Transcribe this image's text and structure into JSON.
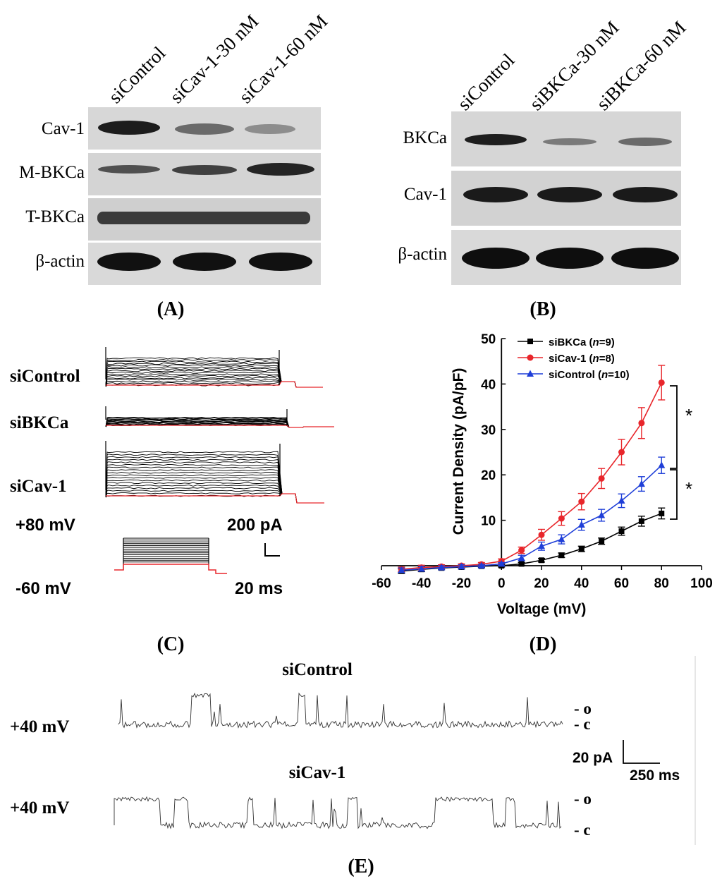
{
  "panels": {
    "A": {
      "label": "(A)",
      "lanes": [
        "siControl",
        "siCav-1-30 nM",
        "siCav-1-60 nM"
      ],
      "rows": [
        "Cav-1",
        "M-BKCa",
        "T-BKCa",
        "β-actin"
      ]
    },
    "B": {
      "label": "(B)",
      "lanes": [
        "siControl",
        "siBKCa-30 nM",
        "siBKCa-60 nM"
      ],
      "rows": [
        "BKCa",
        "Cav-1",
        "β-actin"
      ]
    },
    "C": {
      "label": "(C)",
      "traces": [
        "siControl",
        "siBKCa",
        "siCav-1"
      ],
      "v_top": "+80 mV",
      "v_bottom": "-60 mV",
      "scale_current": "200 pA",
      "scale_time": "20 ms"
    },
    "D": {
      "label": "(D)"
    },
    "E": {
      "label": "(E)",
      "traces": [
        {
          "title": "siControl",
          "voltage": "+40 mV"
        },
        {
          "title": "siCav-1",
          "voltage": "+40 mV"
        }
      ],
      "open_label": "- o",
      "closed_label": "- c",
      "scale_current": "20 pA",
      "scale_time": "250 ms"
    }
  },
  "chart_data": {
    "type": "line",
    "xlabel": "Voltage (mV)",
    "ylabel": "Current Density (pA/pF)",
    "xlim": [
      -60,
      100
    ],
    "ylim": [
      0,
      50
    ],
    "xticks": [
      -60,
      -40,
      -20,
      0,
      20,
      40,
      60,
      80,
      100
    ],
    "yticks": [
      0,
      10,
      20,
      30,
      40,
      50
    ],
    "x": [
      -50,
      -40,
      -30,
      -20,
      -10,
      0,
      10,
      20,
      30,
      40,
      50,
      60,
      70,
      80
    ],
    "series": [
      {
        "name": "siBKCa",
        "n": "9",
        "color": "#000000",
        "marker": "square",
        "values": [
          -1.2,
          -0.8,
          -0.5,
          -0.3,
          -0.1,
          0.0,
          0.4,
          1.2,
          2.3,
          3.7,
          5.4,
          7.6,
          9.8,
          11.5
        ],
        "errors": [
          0.5,
          0.5,
          0.4,
          0.4,
          0.3,
          0.3,
          0.3,
          0.4,
          0.5,
          0.6,
          0.7,
          0.9,
          1.1,
          1.2
        ]
      },
      {
        "name": "siCav-1",
        "n": "8",
        "color": "#e8262b",
        "marker": "circle",
        "values": [
          -0.8,
          -0.4,
          -0.2,
          0.0,
          0.3,
          1.0,
          3.4,
          6.8,
          10.4,
          14.1,
          19.2,
          25.0,
          31.4,
          40.3
        ],
        "errors": [
          0.5,
          0.5,
          0.4,
          0.4,
          0.4,
          0.5,
          0.7,
          1.2,
          1.5,
          1.8,
          2.2,
          2.8,
          3.4,
          3.8
        ]
      },
      {
        "name": "siControl",
        "n": "10",
        "color": "#1f3fd8",
        "marker": "triangle",
        "values": [
          -1.0,
          -0.7,
          -0.4,
          -0.2,
          0.0,
          0.4,
          1.7,
          4.3,
          5.8,
          9.0,
          11.1,
          14.3,
          18.0,
          22.1
        ],
        "errors": [
          0.5,
          0.5,
          0.4,
          0.4,
          0.3,
          0.3,
          0.6,
          0.9,
          1.0,
          1.2,
          1.3,
          1.5,
          1.6,
          1.8
        ]
      }
    ],
    "annotations": [
      "*",
      "*"
    ]
  }
}
